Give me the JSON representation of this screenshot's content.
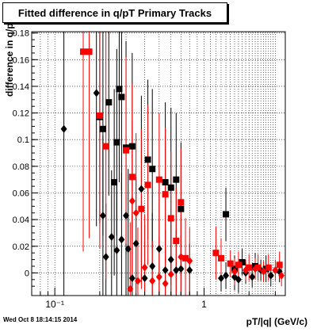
{
  "title": "Fitted difference in q/pT  Primary Tracks",
  "footer": "Wed Oct  8 18:14:15 2014",
  "chart_data": {
    "type": "scatter",
    "title": "Fitted difference in q/pT  Primary Tracks",
    "xlabel": "pT/|q| (GeV/c)",
    "ylabel": "difference in q/pT",
    "x_scale": "log",
    "xlim": [
      0.07,
      3.5
    ],
    "ylim": [
      -0.017,
      0.181
    ],
    "x_ticks": [
      {
        "value": 0.1,
        "label": "10⁻¹"
      },
      {
        "value": 1,
        "label": "1"
      }
    ],
    "y_ticks": [
      0,
      0.02,
      0.04,
      0.06,
      0.08,
      0.1,
      0.12,
      0.14,
      0.16,
      0.18
    ],
    "y_tick_labels": [
      "0",
      "0.02",
      "0.04",
      "0.06",
      "0.08",
      "0.1",
      "0.12",
      "0.14",
      "0.16",
      "0.18"
    ],
    "grid": true,
    "colors": {
      "black": "#000000",
      "red": "#ff0000"
    },
    "series": [
      {
        "marker": "diamond",
        "color": "#000000",
        "points": [
          {
            "x": 0.115,
            "y": 0.108,
            "yerr": 0.17
          },
          {
            "x": 0.19,
            "y": 0.135,
            "yerr": 0.1
          },
          {
            "x": 0.21,
            "y": 0.043,
            "yerr": 0.06
          },
          {
            "x": 0.24,
            "y": 0.027,
            "yerr": 0.05
          },
          {
            "x": 0.22,
            "y": 0.012,
            "yerr": 0.04
          },
          {
            "x": 0.26,
            "y": 0.017,
            "yerr": 0.05
          },
          {
            "x": 0.28,
            "y": 0.025,
            "yerr": 0.05
          },
          {
            "x": 0.3,
            "y": 0.043,
            "yerr": 0.06
          },
          {
            "x": 0.31,
            "y": 0.018,
            "yerr": 0.06
          },
          {
            "x": 0.33,
            "y": -0.004,
            "yerr": 0.05
          },
          {
            "x": 0.35,
            "y": 0.022,
            "yerr": 0.05
          },
          {
            "x": 0.38,
            "y": 0.063,
            "yerr": 0.07
          },
          {
            "x": 0.4,
            "y": -0.004,
            "yerr": 0.04
          },
          {
            "x": 0.45,
            "y": 0.005,
            "yerr": 0.04
          },
          {
            "x": 0.5,
            "y": 0.018,
            "yerr": 0.05
          },
          {
            "x": 0.55,
            "y": 0.002,
            "yerr": 0.03
          },
          {
            "x": 0.6,
            "y": 0.01,
            "yerr": 0.03
          },
          {
            "x": 0.65,
            "y": 0.002,
            "yerr": 0.03
          },
          {
            "x": 0.7,
            "y": 0.003,
            "yerr": 0.025
          },
          {
            "x": 0.8,
            "y": 0.002,
            "yerr": 0.02
          },
          {
            "x": 1.3,
            "y": -0.004,
            "yerr": 0.01
          },
          {
            "x": 1.4,
            "y": -0.002,
            "yerr": 0.01
          },
          {
            "x": 1.6,
            "y": -0.003,
            "yerr": 0.01
          },
          {
            "x": 1.7,
            "y": -0.005,
            "yerr": 0.01
          },
          {
            "x": 1.9,
            "y": 0.0,
            "yerr": 0.008
          },
          {
            "x": 2.1,
            "y": -0.003,
            "yerr": 0.008
          },
          {
            "x": 2.4,
            "y": 0.002,
            "yerr": 0.008
          },
          {
            "x": 2.8,
            "y": -0.002,
            "yerr": 0.008
          },
          {
            "x": 3.2,
            "y": 0.001,
            "yerr": 0.008
          }
        ]
      },
      {
        "marker": "square",
        "color": "#000000",
        "points": [
          {
            "x": 0.2,
            "y": 0.117,
            "yerr": 0.08
          },
          {
            "x": 0.21,
            "y": 0.108,
            "yerr": 0.08
          },
          {
            "x": 0.23,
            "y": 0.128,
            "yerr": 0.07
          },
          {
            "x": 0.25,
            "y": 0.068,
            "yerr": 0.07
          },
          {
            "x": 0.26,
            "y": 0.098,
            "yerr": 0.07
          },
          {
            "x": 0.27,
            "y": 0.138,
            "yerr": 0.07
          },
          {
            "x": 0.28,
            "y": 0.132,
            "yerr": 0.07
          },
          {
            "x": 0.3,
            "y": 0.094,
            "yerr": 0.08
          },
          {
            "x": 0.33,
            "y": 0.095,
            "yerr": 0.07
          },
          {
            "x": 0.42,
            "y": 0.085,
            "yerr": 0.06
          },
          {
            "x": 0.45,
            "y": 0.078,
            "yerr": 0.06
          },
          {
            "x": 0.55,
            "y": 0.068,
            "yerr": 0.06
          },
          {
            "x": 0.6,
            "y": 0.064,
            "yerr": 0.06
          },
          {
            "x": 0.65,
            "y": 0.07,
            "yerr": 0.05
          },
          {
            "x": 0.7,
            "y": 0.048,
            "yerr": 0.05
          },
          {
            "x": 1.4,
            "y": 0.044,
            "yerr": 0.02
          },
          {
            "x": 1.6,
            "y": 0.003,
            "yerr": 0.01
          },
          {
            "x": 1.8,
            "y": 0.008,
            "yerr": 0.01
          },
          {
            "x": 2.2,
            "y": 0.005,
            "yerr": 0.01
          },
          {
            "x": 2.6,
            "y": 0.003,
            "yerr": 0.01
          }
        ]
      },
      {
        "marker": "square",
        "color": "#ff0000",
        "points": [
          {
            "x": 0.155,
            "y": 0.166,
            "yerr": 0.15
          },
          {
            "x": 0.17,
            "y": 0.166,
            "yerr": 0.14
          },
          {
            "x": 0.2,
            "y": 0.118,
            "yerr": 0.1
          },
          {
            "x": 0.22,
            "y": 0.095,
            "yerr": 0.1
          },
          {
            "x": 0.3,
            "y": 0.092,
            "yerr": 0.07
          },
          {
            "x": 0.33,
            "y": 0.072,
            "yerr": 0.07
          },
          {
            "x": 0.38,
            "y": 0.048,
            "yerr": 0.06
          },
          {
            "x": 0.42,
            "y": 0.066,
            "yerr": 0.06
          },
          {
            "x": 0.5,
            "y": 0.07,
            "yerr": 0.05
          },
          {
            "x": 0.55,
            "y": 0.059,
            "yerr": 0.05
          },
          {
            "x": 0.6,
            "y": 0.041,
            "yerr": 0.05
          },
          {
            "x": 0.65,
            "y": 0.024,
            "yerr": 0.04
          },
          {
            "x": 0.7,
            "y": 0.053,
            "yerr": 0.04
          },
          {
            "x": 0.75,
            "y": 0.011,
            "yerr": 0.03
          },
          {
            "x": 1.2,
            "y": 0.015,
            "yerr": 0.02
          },
          {
            "x": 1.3,
            "y": 0.011,
            "yerr": 0.015
          },
          {
            "x": 1.5,
            "y": 0.007,
            "yerr": 0.01
          },
          {
            "x": 1.7,
            "y": 0.006,
            "yerr": 0.01
          },
          {
            "x": 2.0,
            "y": 0.004,
            "yerr": 0.01
          },
          {
            "x": 2.3,
            "y": 0.004,
            "yerr": 0.01
          },
          {
            "x": 2.7,
            "y": 0.004,
            "yerr": 0.01
          },
          {
            "x": 3.2,
            "y": 0.006,
            "yerr": 0.01
          }
        ]
      },
      {
        "marker": "diamond",
        "color": "#ff0000",
        "points": [
          {
            "x": 0.33,
            "y": 0.054,
            "yerr": 0.06
          },
          {
            "x": 0.35,
            "y": 0.045,
            "yerr": 0.06
          },
          {
            "x": 0.32,
            "y": -0.012,
            "yerr": 0.05
          },
          {
            "x": 0.36,
            "y": -0.006,
            "yerr": 0.04
          },
          {
            "x": 0.4,
            "y": 0.004,
            "yerr": 0.04
          },
          {
            "x": 0.45,
            "y": -0.006,
            "yerr": 0.03
          },
          {
            "x": 0.5,
            "y": -0.003,
            "yerr": 0.03
          },
          {
            "x": 0.55,
            "y": -0.008,
            "yerr": 0.03
          },
          {
            "x": 0.6,
            "y": -0.001,
            "yerr": 0.025
          },
          {
            "x": 0.7,
            "y": 0.012,
            "yerr": 0.03
          },
          {
            "x": 0.8,
            "y": 0.009,
            "yerr": 0.025
          },
          {
            "x": 1.6,
            "y": 0.001,
            "yerr": 0.01
          },
          {
            "x": 1.9,
            "y": 0.002,
            "yerr": 0.008
          },
          {
            "x": 2.2,
            "y": 0.003,
            "yerr": 0.008
          },
          {
            "x": 2.5,
            "y": 0.001,
            "yerr": 0.008
          },
          {
            "x": 3.0,
            "y": 0.002,
            "yerr": 0.008
          },
          {
            "x": 3.3,
            "y": -0.002,
            "yerr": 0.008
          }
        ]
      }
    ]
  }
}
